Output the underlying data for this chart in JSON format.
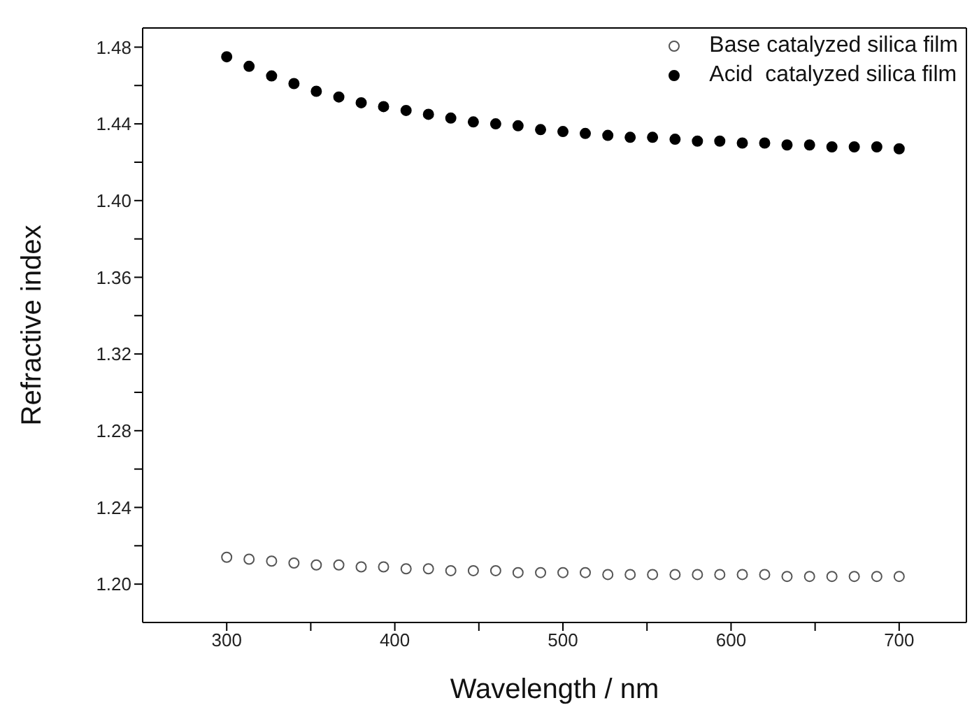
{
  "chart_data": {
    "type": "scatter",
    "xlabel": "Wavelength / nm",
    "ylabel": "Refractive index",
    "x": [
      300,
      313.3,
      326.7,
      340,
      353.3,
      366.7,
      380,
      393.3,
      406.7,
      420,
      433.3,
      446.7,
      460,
      473.3,
      486.7,
      500,
      513.3,
      526.7,
      540,
      553.3,
      566.7,
      580,
      593.3,
      606.7,
      620,
      633.3,
      646.7,
      660,
      673.3,
      686.7,
      700
    ],
    "series": [
      {
        "name": "Base catalyzed silica film",
        "color": "#555555",
        "marker": "circle-open",
        "values": [
          1.214,
          1.213,
          1.212,
          1.211,
          1.21,
          1.21,
          1.209,
          1.209,
          1.208,
          1.208,
          1.207,
          1.207,
          1.207,
          1.206,
          1.206,
          1.206,
          1.206,
          1.205,
          1.205,
          1.205,
          1.205,
          1.205,
          1.205,
          1.205,
          1.205,
          1.204,
          1.204,
          1.204,
          1.204,
          1.204,
          1.204
        ]
      },
      {
        "name": "Acid  catalyzed silica film",
        "color": "#000000",
        "marker": "circle",
        "values": [
          1.475,
          1.47,
          1.465,
          1.461,
          1.457,
          1.454,
          1.451,
          1.449,
          1.447,
          1.445,
          1.443,
          1.441,
          1.44,
          1.439,
          1.437,
          1.436,
          1.435,
          1.434,
          1.433,
          1.433,
          1.432,
          1.431,
          1.431,
          1.43,
          1.43,
          1.429,
          1.429,
          1.428,
          1.428,
          1.428,
          1.427
        ]
      }
    ],
    "xlim": [
      250,
      740
    ],
    "xticks": [
      300,
      {
        "value": 350,
        "label": null
      },
      400,
      {
        "value": 450,
        "label": null
      },
      500,
      {
        "value": 550,
        "label": null
      },
      600,
      {
        "value": 650,
        "label": null
      },
      700
    ],
    "ylim": [
      1.18,
      1.49
    ],
    "yticks": [
      {
        "value": 1.2,
        "label": "1.20"
      },
      {
        "value": 1.22,
        "label": null
      },
      1.24,
      {
        "value": 1.26,
        "label": null
      },
      1.28,
      {
        "value": 1.3,
        "label": null
      },
      1.32,
      {
        "value": 1.34,
        "label": null
      },
      1.36,
      {
        "value": 1.38,
        "label": null
      },
      {
        "value": 1.4,
        "label": "1.40"
      },
      {
        "value": 1.42,
        "label": null
      },
      1.44,
      {
        "value": 1.46,
        "label": null
      },
      1.48
    ],
    "legend": "top right",
    "grid": false
  }
}
